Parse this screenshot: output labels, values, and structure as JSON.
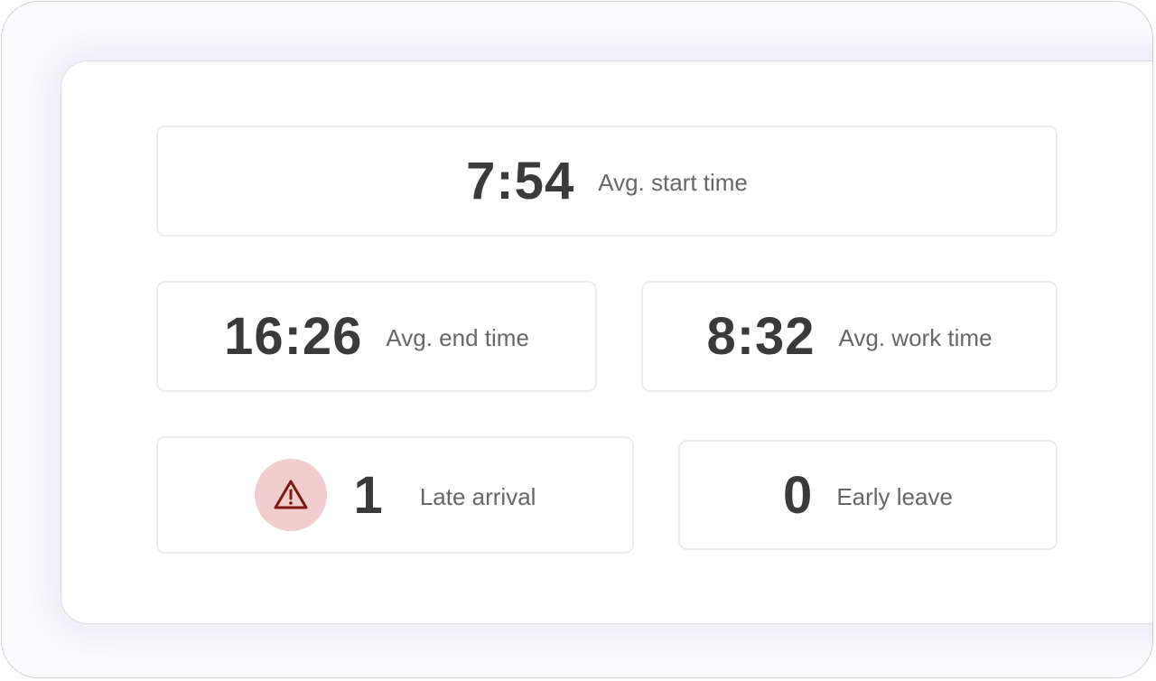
{
  "stats": [
    {
      "value": "7:54",
      "label": "Avg. start time"
    },
    {
      "value": "16:26",
      "label": "Avg. end time"
    },
    {
      "value": "8:32",
      "label": "Avg. work time"
    },
    {
      "value": "1",
      "label": "Late arrival",
      "icon": "warning-icon",
      "icon_color": "#7a1a12",
      "badge_color": "#f2cdcd"
    },
    {
      "value": "0",
      "label": "Early leave"
    }
  ]
}
